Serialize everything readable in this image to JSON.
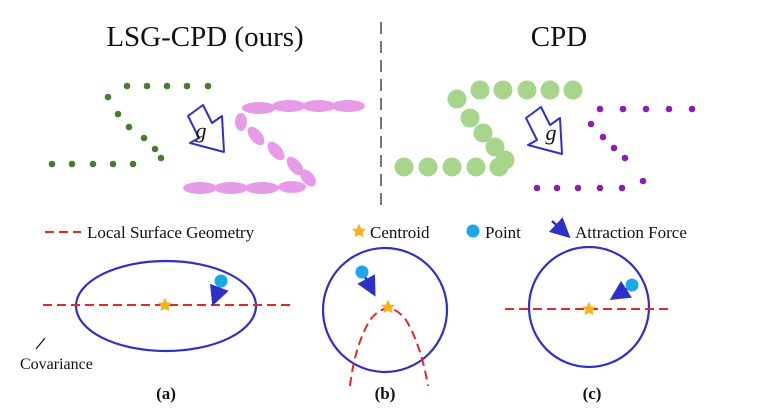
{
  "titles": {
    "left": "LSG-CPD (ours)",
    "right": "CPD"
  },
  "gravity_symbol": "g",
  "legend": {
    "local_surface_geometry": "Local Surface Geometry",
    "centroid": "Centroid",
    "point": "Point",
    "attraction_force": "Attraction Force"
  },
  "labels": {
    "covariance": "Covariance"
  },
  "captions": {
    "a": "(a)",
    "b": "(b)",
    "c": "(c)"
  },
  "colors": {
    "target_points": "#4a7a30",
    "target_gaussians": "#a8d58c",
    "source_points": "#8a1fb0",
    "source_gaussians": "#e79ae8",
    "circles": "#2f2fc9",
    "surface": "#e8262a",
    "centroid": "#f5b21b",
    "point": "#1aa8e8",
    "force": "#2f2fc9"
  }
}
